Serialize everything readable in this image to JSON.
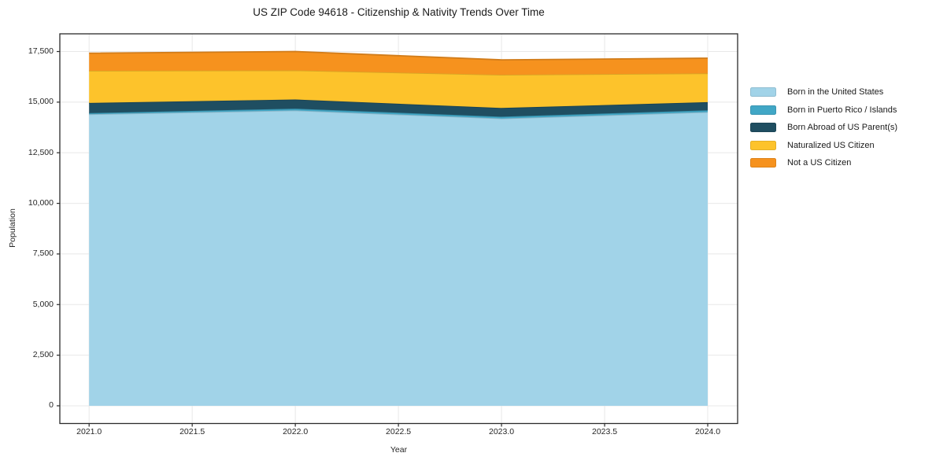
{
  "title": "US ZIP Code 94618 - Citizenship & Nativity Trends Over Time",
  "style": {
    "background_color": "#ffffff",
    "grid_color": "#e8e8e8",
    "axis_color": "#2b2b2b",
    "text_color": "#262626"
  },
  "chart_data": {
    "type": "area",
    "stacked": true,
    "title": "US ZIP Code 94618 - Citizenship & Nativity Trends Over Time",
    "xlabel": "Year",
    "ylabel": "Population",
    "x": [
      2021,
      2022,
      2023,
      2024
    ],
    "series": [
      {
        "name": "Born in the United States",
        "color": "#a1d3e8",
        "values": [
          14400,
          14590,
          14190,
          14510
        ]
      },
      {
        "name": "Born in Puerto Rico / Islands",
        "color": "#41a7c6",
        "values": [
          60,
          90,
          90,
          90
        ]
      },
      {
        "name": "Born Abroad of US Parent(s)",
        "color": "#1f4e61",
        "values": [
          500,
          450,
          430,
          400
        ]
      },
      {
        "name": "Naturalized US Citizen",
        "color": "#fdc32b",
        "values": [
          1590,
          1440,
          1640,
          1420
        ]
      },
      {
        "name": "Not a US Citizen",
        "color": "#f6921e",
        "values": [
          870,
          930,
          740,
          750
        ]
      }
    ],
    "totals_by_year": [
      17420,
      17500,
      17090,
      17170
    ],
    "xlim": [
      2020.858,
      2024.145
    ],
    "ylim": [
      -875,
      18375
    ],
    "xticks": [
      2021.0,
      2021.5,
      2022.0,
      2022.5,
      2023.0,
      2023.5,
      2024.0
    ],
    "xtick_labels": [
      "2021.0",
      "2021.5",
      "2022.0",
      "2022.5",
      "2023.0",
      "2023.5",
      "2024.0"
    ],
    "yticks": [
      0,
      2500,
      5000,
      7500,
      10000,
      12500,
      15000,
      17500
    ],
    "ytick_labels": [
      "0",
      "2,500",
      "5,000",
      "7,500",
      "10,000",
      "12,500",
      "15,000",
      "17,500"
    ],
    "grid": true,
    "legend_position": "outside-right"
  }
}
